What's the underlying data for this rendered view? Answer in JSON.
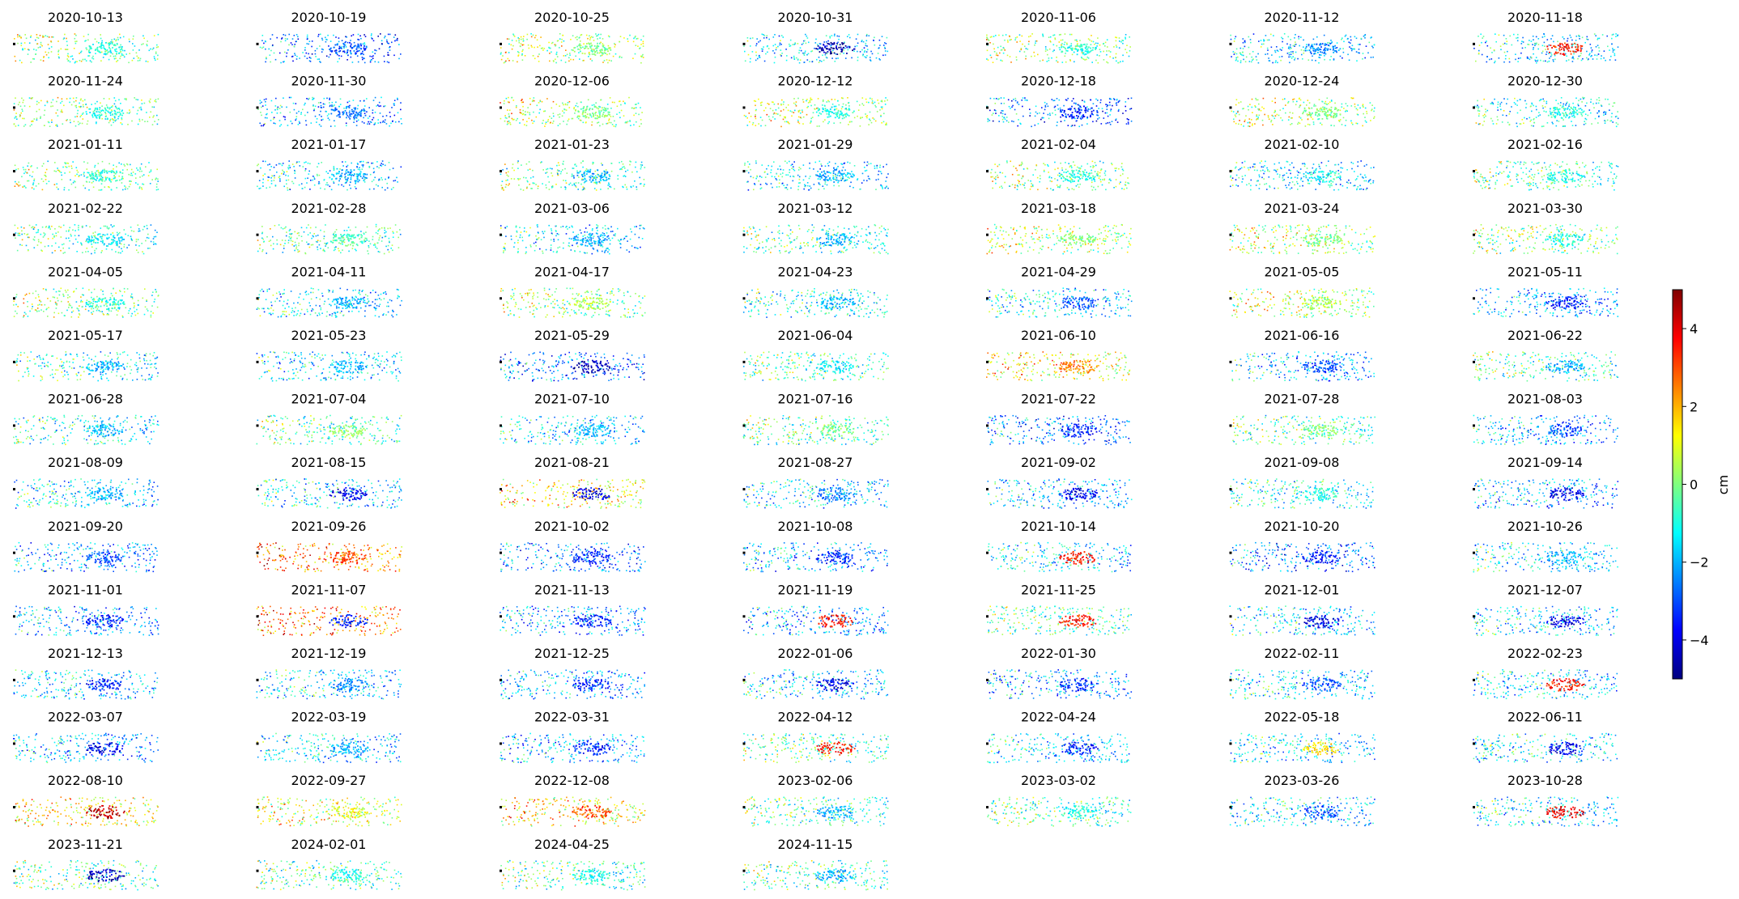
{
  "chart_data": {
    "type": "scatter",
    "grid": false,
    "panel_titles": [
      "2020-10-13",
      "2020-10-19",
      "2020-10-25",
      "2020-10-31",
      "2020-11-06",
      "2020-11-12",
      "2020-11-18",
      "2020-11-24",
      "2020-11-30",
      "2020-12-06",
      "2020-12-12",
      "2020-12-18",
      "2020-12-24",
      "2020-12-30",
      "2021-01-11",
      "2021-01-17",
      "2021-01-23",
      "2021-01-29",
      "2021-02-04",
      "2021-02-10",
      "2021-02-16",
      "2021-02-22",
      "2021-02-28",
      "2021-03-06",
      "2021-03-12",
      "2021-03-18",
      "2021-03-24",
      "2021-03-30",
      "2021-04-05",
      "2021-04-11",
      "2021-04-17",
      "2021-04-23",
      "2021-04-29",
      "2021-05-05",
      "2021-05-11",
      "2021-05-17",
      "2021-05-23",
      "2021-05-29",
      "2021-06-04",
      "2021-06-10",
      "2021-06-16",
      "2021-06-22",
      "2021-06-28",
      "2021-07-04",
      "2021-07-10",
      "2021-07-16",
      "2021-07-22",
      "2021-07-28",
      "2021-08-03",
      "2021-08-09",
      "2021-08-15",
      "2021-08-21",
      "2021-08-27",
      "2021-09-02",
      "2021-09-08",
      "2021-09-14",
      "2021-09-20",
      "2021-09-26",
      "2021-10-02",
      "2021-10-08",
      "2021-10-14",
      "2021-10-20",
      "2021-10-26",
      "2021-11-01",
      "2021-11-07",
      "2021-11-13",
      "2021-11-19",
      "2021-11-25",
      "2021-12-01",
      "2021-12-07",
      "2021-12-13",
      "2021-12-19",
      "2021-12-25",
      "2022-01-06",
      "2022-01-30",
      "2022-02-11",
      "2022-02-23",
      "2022-03-07",
      "2022-03-19",
      "2022-03-31",
      "2022-04-12",
      "2022-04-24",
      "2022-05-18",
      "2022-06-11",
      "2022-08-10",
      "2022-09-27",
      "2022-12-08",
      "2023-02-06",
      "2023-03-02",
      "2023-03-26",
      "2023-10-28",
      "2023-11-21",
      "2024-02-01",
      "2024-04-25",
      "2024-11-15"
    ],
    "panel_center_values": [
      -1,
      -3,
      0,
      -4.5,
      -1,
      -2.5,
      3.5,
      -1,
      -2.5,
      0,
      -1,
      -3.5,
      0,
      -1,
      -1,
      -2,
      -2,
      -2,
      -1,
      -1,
      -1,
      -1.5,
      -0.5,
      -2,
      -2,
      0,
      0,
      -1,
      -1,
      -2,
      0.5,
      -2,
      -3,
      0.5,
      -3.5,
      -2,
      -2,
      -4.5,
      -1.5,
      2.5,
      -3,
      -2,
      -2,
      0,
      -2,
      0,
      -3.5,
      0,
      -3,
      -2,
      -4,
      -4,
      -2.5,
      -4,
      -1,
      -4,
      -3,
      3,
      -3.5,
      -3.5,
      3.5,
      -3.5,
      -2,
      -3.5,
      -3.5,
      -3.5,
      3.5,
      3.5,
      -4,
      -4,
      -3.5,
      -2.5,
      -3.5,
      -4,
      -3.5,
      -3,
      3.5,
      -4,
      -2,
      -3.5,
      3.5,
      -3.5,
      1.5,
      -4,
      4.5,
      1,
      3,
      -2,
      -1,
      -3,
      4,
      -4.5,
      -1,
      -1,
      -2
    ],
    "panel_scene_values": [
      -0.5,
      -3,
      0,
      -2,
      -0.5,
      -2,
      -2,
      -0.5,
      -2.5,
      0,
      0,
      -3,
      0,
      -1.5,
      -0.5,
      -2,
      -1,
      -2,
      -0.5,
      -2,
      -1,
      -1,
      -1,
      -2,
      -1,
      0,
      0,
      -0.5,
      -0.5,
      -2,
      -0.5,
      -1.5,
      -2,
      0,
      -2.5,
      -1.5,
      -2,
      -3,
      -1,
      1,
      -2.5,
      -1,
      -1.5,
      -1,
      -2,
      -1,
      -3,
      -1,
      -2.5,
      -2,
      -2,
      1,
      -2,
      -2.5,
      -1.5,
      -2.5,
      -2.5,
      2,
      -3,
      -2.5,
      -2,
      -3,
      -2,
      -2.5,
      2,
      -2.5,
      -2.5,
      -1,
      -2,
      -2,
      -2,
      -2,
      -2.5,
      -2,
      -2.5,
      -2,
      -2,
      -2.5,
      -2,
      -2.5,
      -1,
      -2,
      -2,
      -2,
      1,
      0.5,
      1,
      -1,
      -1,
      -2,
      -2,
      -1,
      -1,
      -1,
      -1
    ],
    "colorbar": {
      "label": "cm",
      "range": [
        -5,
        5
      ],
      "ticks": [
        -4,
        -2,
        0,
        2,
        4
      ],
      "tick_labels": [
        "−4",
        "−2",
        "0",
        "2",
        "4"
      ],
      "colormap": "jet"
    },
    "layout": {
      "columns": 7,
      "rows": 14
    },
    "colors": {
      "reference_point": "#000000",
      "colormap_stops": [
        "#00007f",
        "#0000ff",
        "#007fff",
        "#00ffff",
        "#7fff7f",
        "#ffff00",
        "#ff7f00",
        "#ff0000",
        "#7f0000"
      ]
    }
  }
}
